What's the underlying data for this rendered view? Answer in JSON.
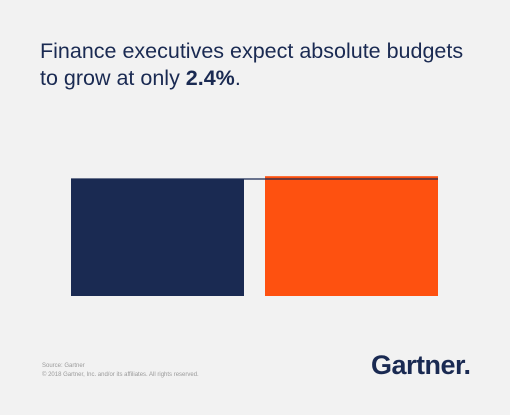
{
  "headline": {
    "line1": "Finance executives expect absolute budgets",
    "line2_prefix": "to grow at only ",
    "line2_emphasis": "2.4%",
    "line2_suffix": "."
  },
  "footer": {
    "source": "Source: Gartner",
    "copyright": "© 2018 Gartner, Inc. and/or its affiliates. All rights reserved."
  },
  "logo": {
    "text": "Gartner",
    "mark": "."
  },
  "colors": {
    "navy": "#1a2a52",
    "orange": "#fe5110",
    "background": "#f2f2f2"
  },
  "chart_data": {
    "type": "bar",
    "categories": [
      "",
      ""
    ],
    "values": [
      100,
      102.4
    ],
    "colors": [
      "#1a2a52",
      "#fe5110"
    ],
    "title": "",
    "xlabel": "",
    "ylabel": "",
    "reference_line": 100,
    "grid": false,
    "legend": "none"
  }
}
